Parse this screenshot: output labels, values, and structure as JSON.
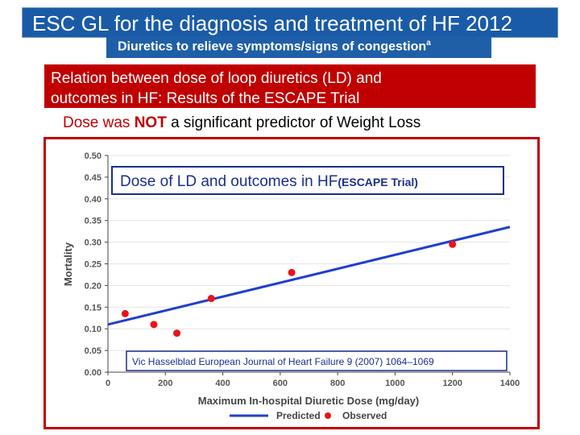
{
  "header": {
    "title": "ESC GL for the diagnosis and treatment of HF 2012",
    "subtitle": "Diuretics to relieve symptoms/signs of congestion",
    "subtitle_mark": "a"
  },
  "relation": {
    "line1": "Relation between dose of loop diuretics (LD) and",
    "line2": "outcomes in HF: Results of the ESCAPE Trial"
  },
  "dose_statement": {
    "part1": "Dose was ",
    "not": "NOT",
    "part2": " a significant predictor of Weight Loss"
  },
  "colors": {
    "title_bg": "#1a5ba7",
    "relation_bg": "#c00000",
    "predicted_line": "#1f3fd0",
    "observed_point": "#e8141a",
    "label_box_bg": "#ffffff"
  },
  "chart_data": {
    "type": "line",
    "overlay_title": "Dose of LD and outcomes in HF",
    "overlay_title_suffix": "(ESCAPE Trial)",
    "citation": "Vic Hasselblad European Journal of Heart Failure 9 (2007) 1064–1069",
    "xlabel": "Maximum In-hospital Diuretic Dose (mg/day)",
    "ylabel": "Mortality",
    "xlim": [
      0,
      1400
    ],
    "ylim": [
      0,
      0.5
    ],
    "x_ticks": [
      0,
      200,
      400,
      600,
      800,
      1000,
      1200,
      1400
    ],
    "x_tick_labels": [
      "0",
      "200",
      "400",
      "600",
      "800",
      "1000",
      "1200",
      "1400"
    ],
    "y_ticks": [
      0,
      0.05,
      0.1,
      0.15,
      0.2,
      0.25,
      0.3,
      0.35,
      0.4,
      0.45,
      0.5
    ],
    "y_tick_labels": [
      "0.00",
      "0.05",
      "0.10",
      "0.15",
      "0.20",
      "0.25",
      "0.30",
      "0.35",
      "0.40",
      "0.45",
      "0.50"
    ],
    "series": [
      {
        "name": "Predicted",
        "kind": "line",
        "x": [
          0,
          1400
        ],
        "y": [
          0.11,
          0.335
        ]
      },
      {
        "name": "Observed",
        "kind": "scatter",
        "x": [
          60,
          160,
          240,
          360,
          640,
          1200
        ],
        "y": [
          0.135,
          0.11,
          0.09,
          0.17,
          0.23,
          0.295
        ]
      }
    ],
    "legend": [
      "Predicted",
      "Observed"
    ]
  }
}
